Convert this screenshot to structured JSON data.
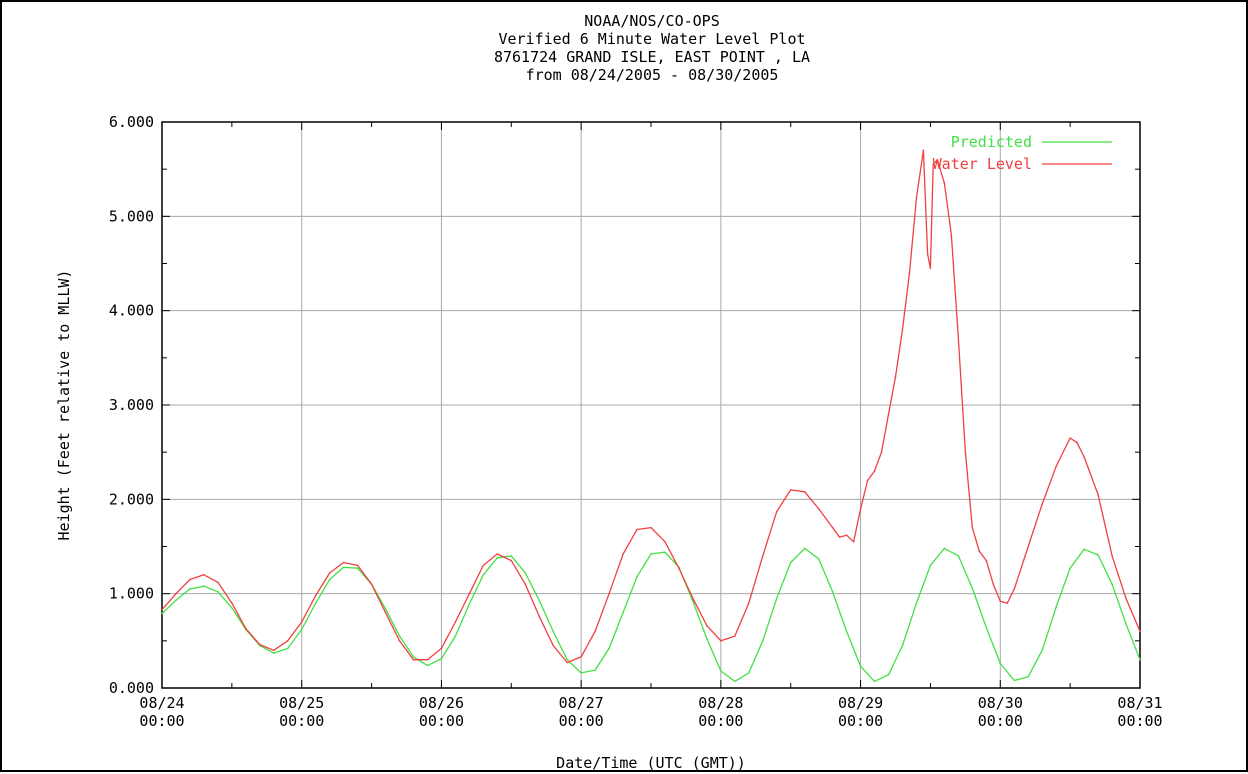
{
  "chart_data": {
    "type": "line",
    "title_lines": [
      "NOAA/NOS/CO-OPS",
      "Verified 6 Minute Water Level Plot",
      "8761724 GRAND ISLE, EAST POINT , LA",
      "from 08/24/2005 - 08/30/2005"
    ],
    "xlabel": "Date/Time (UTC (GMT))",
    "ylabel": "Height (Feet relative to MLLW)",
    "x_unit": "days after 08/24/2005 00:00 UTC",
    "xlim": [
      0,
      7
    ],
    "ylim": [
      0,
      6
    ],
    "grid": true,
    "legend_position": "top-right",
    "y_ticks": [
      {
        "value": 0,
        "label": "0.000"
      },
      {
        "value": 1,
        "label": "1.000"
      },
      {
        "value": 2,
        "label": "2.000"
      },
      {
        "value": 3,
        "label": "3.000"
      },
      {
        "value": 4,
        "label": "4.000"
      },
      {
        "value": 5,
        "label": "5.000"
      },
      {
        "value": 6,
        "label": "6.000"
      }
    ],
    "x_ticks": [
      {
        "value": 0,
        "date": "08/24",
        "time": "00:00"
      },
      {
        "value": 1,
        "date": "08/25",
        "time": "00:00"
      },
      {
        "value": 2,
        "date": "08/26",
        "time": "00:00"
      },
      {
        "value": 3,
        "date": "08/27",
        "time": "00:00"
      },
      {
        "value": 4,
        "date": "08/28",
        "time": "00:00"
      },
      {
        "value": 5,
        "date": "08/29",
        "time": "00:00"
      },
      {
        "value": 6,
        "date": "08/30",
        "time": "00:00"
      },
      {
        "value": 7,
        "date": "08/31",
        "time": "00:00"
      }
    ],
    "series": [
      {
        "name": "Predicted",
        "color": "#44e044",
        "x": [
          0,
          0.1,
          0.2,
          0.3,
          0.4,
          0.5,
          0.6,
          0.7,
          0.8,
          0.9,
          1.0,
          1.1,
          1.2,
          1.3,
          1.4,
          1.5,
          1.6,
          1.7,
          1.8,
          1.9,
          2.0,
          2.1,
          2.2,
          2.3,
          2.4,
          2.5,
          2.6,
          2.7,
          2.8,
          2.9,
          3.0,
          3.1,
          3.2,
          3.3,
          3.4,
          3.5,
          3.6,
          3.7,
          3.8,
          3.9,
          4.0,
          4.1,
          4.2,
          4.3,
          4.4,
          4.5,
          4.6,
          4.7,
          4.8,
          4.9,
          5.0,
          5.1,
          5.2,
          5.3,
          5.4,
          5.5,
          5.6,
          5.7,
          5.8,
          5.9,
          6.0,
          6.1,
          6.2,
          6.3,
          6.4,
          6.5,
          6.6,
          6.7,
          6.8,
          6.9,
          7.0
        ],
        "y": [
          0.79,
          0.93,
          1.05,
          1.08,
          1.02,
          0.85,
          0.62,
          0.45,
          0.37,
          0.42,
          0.62,
          0.9,
          1.15,
          1.28,
          1.27,
          1.1,
          0.84,
          0.55,
          0.33,
          0.24,
          0.31,
          0.55,
          0.89,
          1.2,
          1.38,
          1.4,
          1.22,
          0.93,
          0.6,
          0.3,
          0.16,
          0.19,
          0.42,
          0.8,
          1.18,
          1.42,
          1.44,
          1.28,
          0.92,
          0.52,
          0.18,
          0.07,
          0.16,
          0.5,
          0.95,
          1.33,
          1.48,
          1.37,
          1.02,
          0.6,
          0.23,
          0.07,
          0.14,
          0.45,
          0.9,
          1.3,
          1.48,
          1.4,
          1.06,
          0.64,
          0.26,
          0.08,
          0.12,
          0.4,
          0.86,
          1.27,
          1.47,
          1.41,
          1.1,
          0.68,
          0.3
        ]
      },
      {
        "name": "Water Level",
        "color": "#f04040",
        "x": [
          0,
          0.1,
          0.2,
          0.3,
          0.4,
          0.5,
          0.6,
          0.7,
          0.8,
          0.9,
          1.0,
          1.1,
          1.2,
          1.3,
          1.4,
          1.5,
          1.6,
          1.7,
          1.8,
          1.9,
          2.0,
          2.1,
          2.2,
          2.3,
          2.4,
          2.5,
          2.6,
          2.7,
          2.8,
          2.9,
          3.0,
          3.1,
          3.2,
          3.3,
          3.4,
          3.5,
          3.6,
          3.7,
          3.8,
          3.9,
          4.0,
          4.1,
          4.2,
          4.3,
          4.4,
          4.5,
          4.6,
          4.7,
          4.8,
          4.85,
          4.9,
          4.95,
          5.0,
          5.05,
          5.1,
          5.15,
          5.2,
          5.25,
          5.3,
          5.35,
          5.4,
          5.45,
          5.48,
          5.5,
          5.52,
          5.55,
          5.6,
          5.65,
          5.7,
          5.75,
          5.8,
          5.85,
          5.9,
          5.95,
          6.0,
          6.05,
          6.1,
          6.2,
          6.3,
          6.4,
          6.5,
          6.55,
          6.6,
          6.7,
          6.8,
          6.9,
          7.0
        ],
        "y": [
          0.83,
          1.0,
          1.15,
          1.2,
          1.12,
          0.9,
          0.63,
          0.46,
          0.4,
          0.5,
          0.7,
          0.98,
          1.22,
          1.33,
          1.3,
          1.1,
          0.8,
          0.5,
          0.3,
          0.3,
          0.42,
          0.7,
          1.0,
          1.3,
          1.42,
          1.35,
          1.1,
          0.76,
          0.45,
          0.27,
          0.33,
          0.6,
          1.0,
          1.42,
          1.68,
          1.7,
          1.55,
          1.27,
          0.95,
          0.66,
          0.5,
          0.55,
          0.9,
          1.4,
          1.87,
          2.1,
          2.08,
          1.9,
          1.7,
          1.6,
          1.62,
          1.55,
          1.9,
          2.2,
          2.3,
          2.5,
          2.9,
          3.3,
          3.8,
          4.4,
          5.2,
          5.7,
          4.6,
          4.45,
          5.55,
          5.6,
          5.35,
          4.8,
          3.7,
          2.5,
          1.7,
          1.45,
          1.35,
          1.1,
          0.92,
          0.9,
          1.05,
          1.5,
          1.95,
          2.35,
          2.65,
          2.6,
          2.45,
          2.05,
          1.4,
          0.95,
          0.6
        ]
      }
    ]
  }
}
